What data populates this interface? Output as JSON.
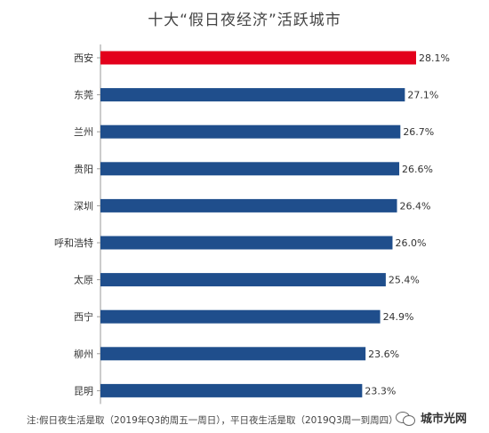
{
  "title": "十大“假日夜经济”活跃城市",
  "footnote": "注:假日夜生活是取（2019年Q3的周五一周日），平日夜生活是取（2019Q3周一到周四）",
  "watermark": {
    "text": "城市光网",
    "icon": "wechat-icon"
  },
  "colors": {
    "highlight": "#e3001b",
    "bar": "#1f4e8c",
    "axis": "#999999"
  },
  "chart_data": {
    "type": "bar",
    "orientation": "horizontal",
    "title": "十大“假日夜经济”活跃城市",
    "categories": [
      "西安",
      "东莞",
      "兰州",
      "贵阳",
      "深圳",
      "呼和浩特",
      "太原",
      "西宁",
      "柳州",
      "昆明"
    ],
    "values": [
      28.1,
      27.1,
      26.7,
      26.6,
      26.4,
      26.0,
      25.4,
      24.9,
      23.6,
      23.3
    ],
    "labels": [
      "28.1%",
      "27.1%",
      "26.7%",
      "26.6%",
      "26.4%",
      "26.0%",
      "25.4%",
      "24.9%",
      "23.6%",
      "23.3%"
    ],
    "highlight_index": 0,
    "xlim": [
      0,
      28.1
    ],
    "grid": false,
    "legend": "none"
  }
}
